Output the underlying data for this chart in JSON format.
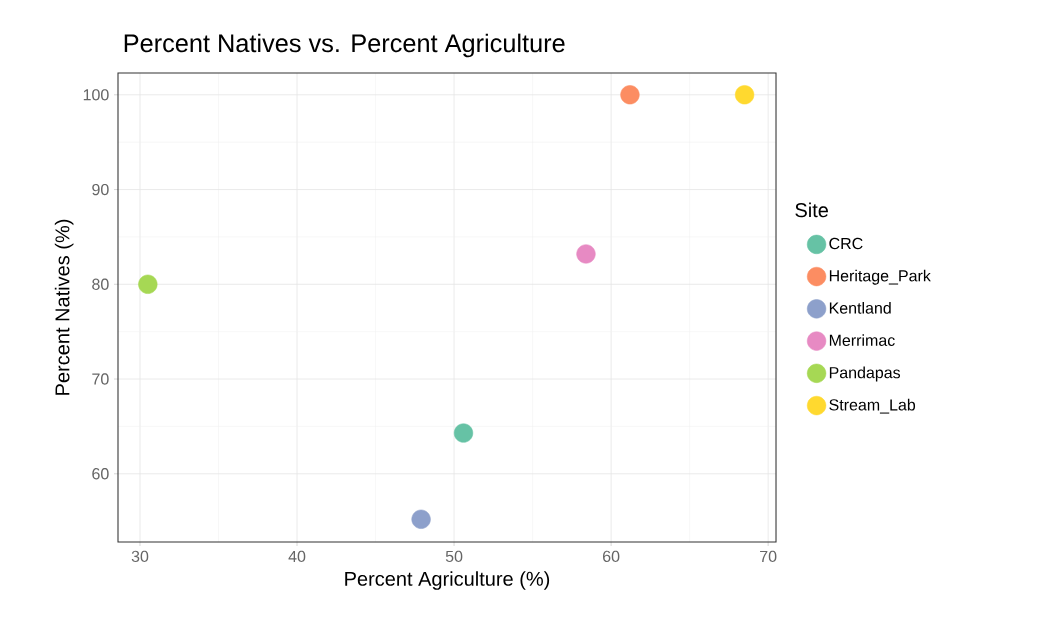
{
  "chart_data": {
    "type": "scatter",
    "title": "Percent Natives vs. Percent Agriculture",
    "xlabel": "Percent Agriculture (%)",
    "ylabel": "Percent Natives (%)",
    "legend_title": "Site",
    "series": [
      {
        "name": "CRC",
        "color": "#66c2a5",
        "x": [
          50.6
        ],
        "values": [
          64.3
        ]
      },
      {
        "name": "Heritage_Park",
        "color": "#fc8d62",
        "x": [
          61.2
        ],
        "values": [
          100
        ]
      },
      {
        "name": "Kentland",
        "color": "#8da0cb",
        "x": [
          47.9
        ],
        "values": [
          55.2
        ]
      },
      {
        "name": "Merrimac",
        "color": "#e78ac3",
        "x": [
          58.4
        ],
        "values": [
          83.2
        ]
      },
      {
        "name": "Pandapas",
        "color": "#a6d854",
        "x": [
          30.5
        ],
        "values": [
          80
        ]
      },
      {
        "name": "Stream_Lab",
        "color": "#ffd92f",
        "x": [
          68.5
        ],
        "values": [
          100
        ]
      }
    ],
    "xlim": [
      28.6,
      70.5
    ],
    "ylim": [
      52.8,
      102.3
    ],
    "xticks": [
      30,
      40,
      50,
      60,
      70
    ],
    "yticks": [
      60,
      70,
      80,
      90,
      100
    ],
    "grid": true,
    "legend": "right",
    "marker": "circle"
  }
}
